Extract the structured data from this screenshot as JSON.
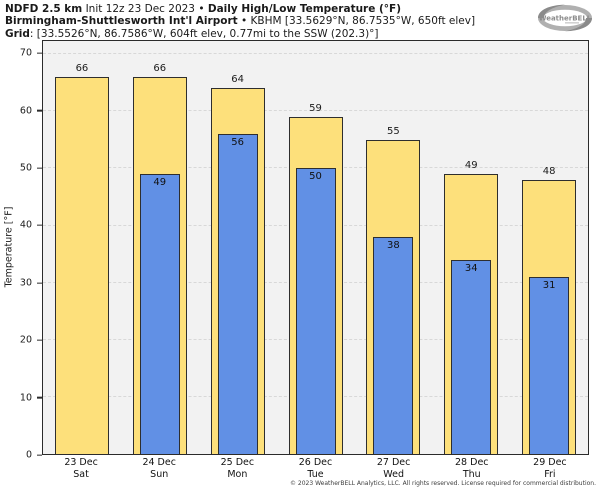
{
  "header": {
    "line1": {
      "model_bold": "NDFD 2.5 km",
      "init_text": " Init 12z 23 Dec 2023 • ",
      "title_bold": "Daily High/Low Temperature (°F)"
    },
    "line2": {
      "station_bold": "Birmingham-Shuttlesworth Int'l Airport",
      "station_detail": " • KBHM [33.5629°N, 86.7535°W, 650ft elev]"
    },
    "line3": {
      "grid_bold": "Grid",
      "grid_detail": ": [33.5526°N, 86.7586°W, 604ft elev, 0.77mi to the SSW (202.3)°]"
    }
  },
  "logo": {
    "brand": "WeatherBELL"
  },
  "chart_data": {
    "type": "bar",
    "title": "Daily High/Low Temperature (°F)",
    "ylabel": "Temperature [°F]",
    "ylim": [
      0,
      72.3
    ],
    "yticks": [
      0,
      10,
      20,
      30,
      40,
      50,
      60,
      70
    ],
    "grid": "horizontal-dashed",
    "legend_position": "none",
    "bar_labels": true,
    "categories": [
      {
        "date": "23 Dec",
        "day": "Sat"
      },
      {
        "date": "24 Dec",
        "day": "Sun"
      },
      {
        "date": "25 Dec",
        "day": "Mon"
      },
      {
        "date": "26 Dec",
        "day": "Tue"
      },
      {
        "date": "27 Dec",
        "day": "Wed"
      },
      {
        "date": "28 Dec",
        "day": "Thu"
      },
      {
        "date": "29 Dec",
        "day": "Fri"
      }
    ],
    "series": [
      {
        "name": "Daily High",
        "color": "#fde07b",
        "values": [
          66,
          66,
          64,
          59,
          55,
          49,
          48
        ]
      },
      {
        "name": "Daily Low",
        "color": "#6190e5",
        "values": [
          null,
          49,
          56,
          50,
          38,
          34,
          31
        ]
      }
    ]
  },
  "footer": {
    "copyright": "© 2023 WeatherBELL Analytics, LLC. All rights reserved. License required for commercial distribution."
  },
  "colors": {
    "plot_bg": "#f2f2f2",
    "grid": "#d8d8d8",
    "axis": "#2b2b2b",
    "high_bar": "#fde07b",
    "low_bar": "#6190e5"
  }
}
